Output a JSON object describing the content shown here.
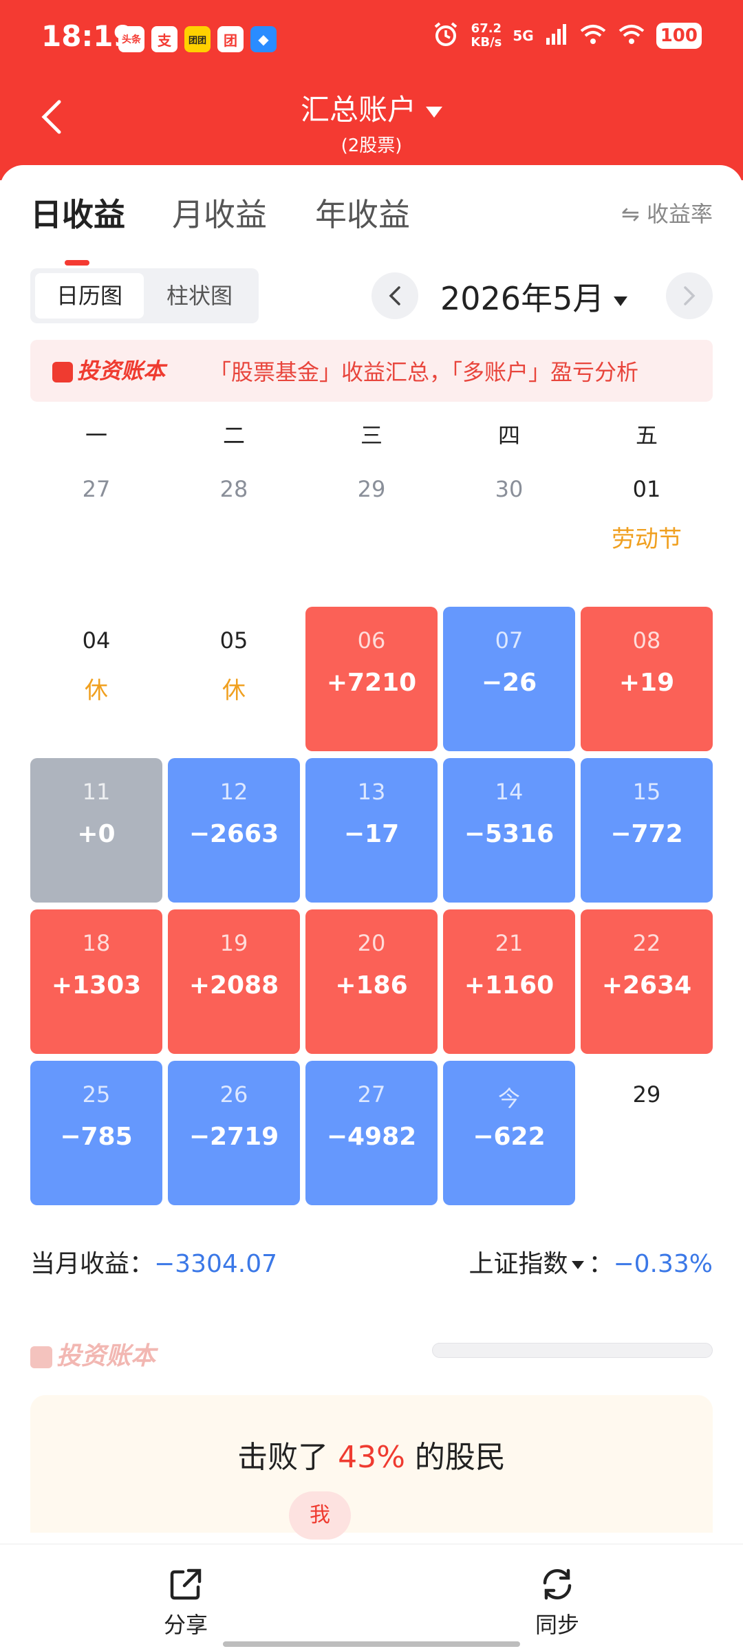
{
  "status_bar": {
    "time": "18:19",
    "app_icons": [
      "头条",
      "支",
      "团团",
      "团",
      "◆"
    ],
    "net_speed_value": "67.2",
    "net_speed_unit": "KB/s",
    "network": "5G",
    "battery": "100"
  },
  "header": {
    "title": "汇总账户",
    "subtitle": "(2股票)"
  },
  "tabs": [
    {
      "label": "日收益",
      "active": true
    },
    {
      "label": "月收益",
      "active": false
    },
    {
      "label": "年收益",
      "active": false
    }
  ],
  "rate_toggle": "⇋ 收益率",
  "view_switch": [
    "日历图",
    "柱状图"
  ],
  "month_label": "2026年5月",
  "promo": {
    "logo": "投资账本",
    "text": "「股票基金」收益汇总，「多账户」盈亏分析"
  },
  "weekdays": [
    "一",
    "二",
    "三",
    "四",
    "五"
  ],
  "calendar": [
    {
      "day": "27",
      "value": "",
      "note": "",
      "style": "dim"
    },
    {
      "day": "28",
      "value": "",
      "note": "",
      "style": "dim"
    },
    {
      "day": "29",
      "value": "",
      "note": "",
      "style": "dim"
    },
    {
      "day": "30",
      "value": "",
      "note": "",
      "style": "dim"
    },
    {
      "day": "01",
      "value": "",
      "note": "劳动节",
      "style": "plain"
    },
    {
      "day": "04",
      "value": "",
      "note": "休",
      "style": "plain"
    },
    {
      "day": "05",
      "value": "",
      "note": "休",
      "style": "plain"
    },
    {
      "day": "06",
      "value": "+7210",
      "note": "",
      "style": "red"
    },
    {
      "day": "07",
      "value": "−26",
      "note": "",
      "style": "blue"
    },
    {
      "day": "08",
      "value": "+19",
      "note": "",
      "style": "red"
    },
    {
      "day": "11",
      "value": "+0",
      "note": "",
      "style": "gray"
    },
    {
      "day": "12",
      "value": "−2663",
      "note": "",
      "style": "blue"
    },
    {
      "day": "13",
      "value": "−17",
      "note": "",
      "style": "blue"
    },
    {
      "day": "14",
      "value": "−5316",
      "note": "",
      "style": "blue"
    },
    {
      "day": "15",
      "value": "−772",
      "note": "",
      "style": "blue"
    },
    {
      "day": "18",
      "value": "+1303",
      "note": "",
      "style": "red"
    },
    {
      "day": "19",
      "value": "+2088",
      "note": "",
      "style": "red"
    },
    {
      "day": "20",
      "value": "+186",
      "note": "",
      "style": "red"
    },
    {
      "day": "21",
      "value": "+1160",
      "note": "",
      "style": "red"
    },
    {
      "day": "22",
      "value": "+2634",
      "note": "",
      "style": "red"
    },
    {
      "day": "25",
      "value": "−785",
      "note": "",
      "style": "blue"
    },
    {
      "day": "26",
      "value": "−2719",
      "note": "",
      "style": "blue"
    },
    {
      "day": "27",
      "value": "−4982",
      "note": "",
      "style": "blue"
    },
    {
      "day": "今",
      "value": "−622",
      "note": "",
      "style": "blue"
    },
    {
      "day": "29",
      "value": "",
      "note": "",
      "style": "plain"
    }
  ],
  "summary": {
    "month_label": "当月收益：",
    "month_value": "−3304.07",
    "index_label": "上证指数",
    "index_sep": "：",
    "index_value": "−0.33%"
  },
  "watermark_logo": "投资账本",
  "beat": {
    "prefix": "击败了",
    "percent": "43%",
    "suffix": "的股民",
    "me": "我"
  },
  "bottom_bar": {
    "share_label": "分享",
    "sync_label": "同步"
  },
  "colors": {
    "header_red": "#f43a32",
    "gain_red": "#fb6157",
    "loss_blue": "#6598fd",
    "flat_gray": "#aeb4be",
    "holiday_orange": "#f0a020"
  }
}
